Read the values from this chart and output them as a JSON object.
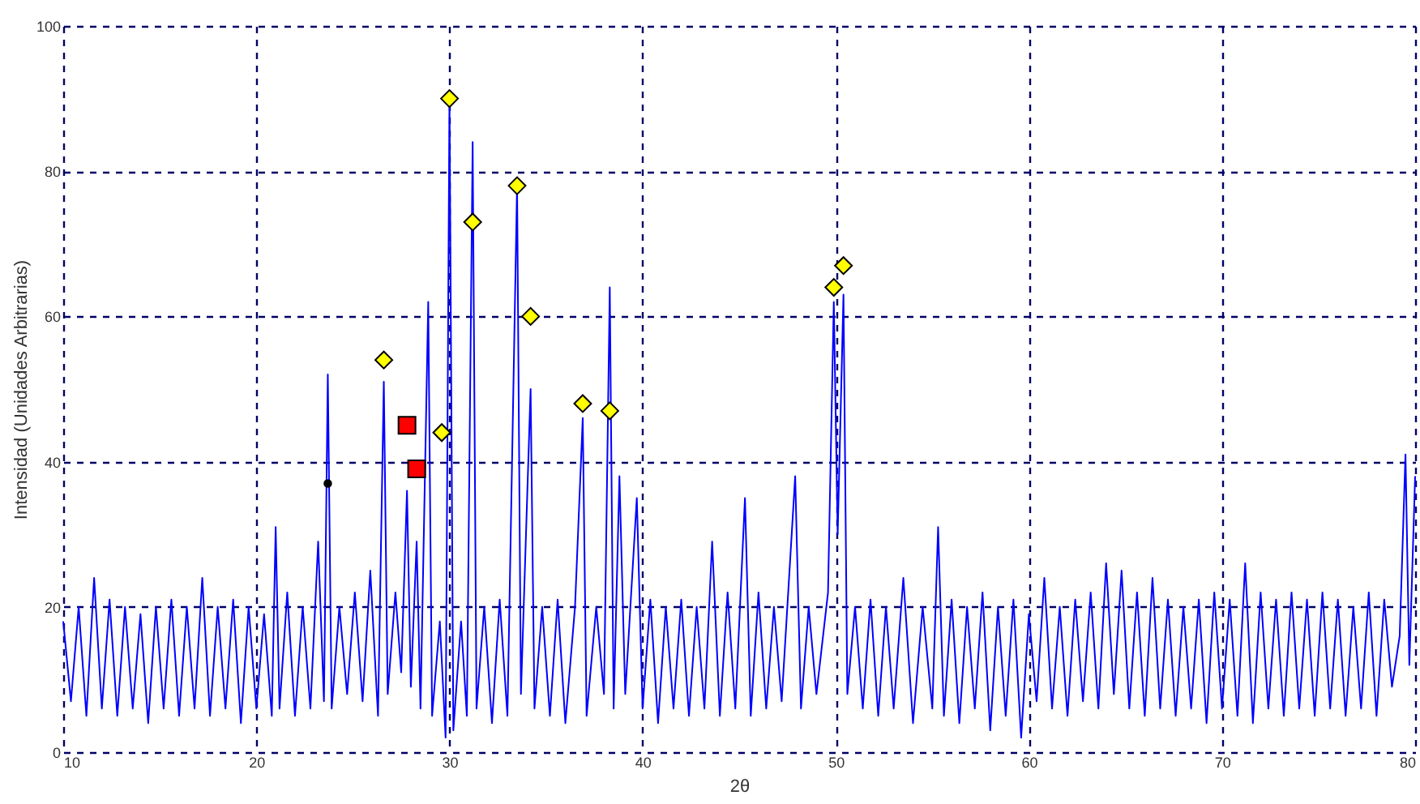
{
  "chart_data": {
    "type": "line",
    "xlabel": "2θ",
    "ylabel": "Intensidad (Unidades Arbitrarias)",
    "xlim": [
      10,
      80
    ],
    "ylim": [
      0,
      100
    ],
    "xticks": [
      10,
      20,
      30,
      40,
      50,
      60,
      70,
      80
    ],
    "yticks": [
      0,
      20,
      40,
      60,
      80,
      100
    ],
    "grid": true,
    "series": [
      {
        "color": "#0000ff",
        "marker": "none",
        "line_style": "solid",
        "x": [
          10,
          10.4,
          10.8,
          11.2,
          11.6,
          12,
          12.4,
          12.8,
          13.2,
          13.6,
          14,
          14.4,
          14.8,
          15.2,
          15.6,
          16,
          16.4,
          16.8,
          17.2,
          17.6,
          18,
          18.4,
          18.8,
          19.2,
          19.6,
          20,
          20.4,
          20.8,
          21,
          21.2,
          21.6,
          22,
          22.4,
          22.8,
          23.2,
          23.5,
          23.7,
          23.9,
          24.3,
          24.7,
          25.1,
          25.5,
          25.9,
          26.3,
          26.6,
          26.8,
          27.2,
          27.5,
          27.8,
          28,
          28.3,
          28.5,
          28.9,
          29.1,
          29.5,
          29.8,
          30,
          30.2,
          30.6,
          30.9,
          31.2,
          31.4,
          31.8,
          32.2,
          32.6,
          33,
          33.5,
          33.7,
          34.2,
          34.4,
          34.8,
          35.2,
          35.6,
          36,
          36.5,
          36.9,
          37.1,
          37.6,
          38,
          38.3,
          38.5,
          38.8,
          39.1,
          39.7,
          40,
          40.4,
          40.8,
          41.2,
          41.6,
          42,
          42.4,
          42.8,
          43.2,
          43.6,
          44,
          44.4,
          44.8,
          45.3,
          45.6,
          46,
          46.4,
          46.8,
          47.2,
          47.9,
          48.2,
          48.6,
          49,
          49.6,
          49.9,
          50.1,
          50.4,
          50.6,
          51,
          51.4,
          51.8,
          52.2,
          52.6,
          53,
          53.5,
          54,
          54.5,
          55,
          55.3,
          55.6,
          56,
          56.4,
          56.8,
          57.2,
          57.6,
          58,
          58.4,
          58.8,
          59.2,
          59.6,
          60,
          60.4,
          60.8,
          61.2,
          61.6,
          62,
          62.4,
          62.8,
          63.2,
          63.6,
          64,
          64.4,
          64.8,
          65.2,
          65.6,
          66,
          66.4,
          66.8,
          67.2,
          67.6,
          68,
          68.4,
          68.8,
          69.2,
          69.6,
          70,
          70.4,
          70.8,
          71.2,
          71.6,
          72,
          72.4,
          72.8,
          73.2,
          73.6,
          74,
          74.4,
          74.8,
          75.2,
          75.6,
          76,
          76.4,
          76.8,
          77.2,
          77.6,
          78,
          78.4,
          78.8,
          79.2,
          79.5,
          79.7,
          80
        ],
        "values": [
          18,
          7,
          20,
          5,
          24,
          6,
          21,
          5,
          20,
          6,
          19,
          4,
          20,
          6,
          21,
          5,
          20,
          6,
          24,
          5,
          20,
          6,
          21,
          4,
          20,
          6,
          19,
          5,
          31,
          6,
          22,
          5,
          20,
          6,
          29,
          7,
          52,
          6,
          20,
          8,
          22,
          7,
          25,
          5,
          51,
          8,
          22,
          11,
          36,
          9,
          29,
          6,
          62,
          5,
          18,
          2,
          90,
          3,
          18,
          5,
          84,
          6,
          20,
          4,
          21,
          5,
          78,
          8,
          50,
          6,
          20,
          5,
          21,
          4,
          20,
          46,
          5,
          20,
          8,
          64,
          6,
          38,
          8,
          35,
          6,
          21,
          4,
          20,
          6,
          21,
          5,
          20,
          6,
          29,
          5,
          22,
          6,
          35,
          5,
          22,
          6,
          20,
          7,
          38,
          6,
          20,
          8,
          22,
          62,
          30,
          63,
          8,
          20,
          6,
          21,
          5,
          20,
          6,
          24,
          4,
          20,
          6,
          31,
          5,
          21,
          4,
          20,
          6,
          22,
          3,
          20,
          5,
          21,
          2,
          19,
          7,
          24,
          6,
          20,
          5,
          21,
          7,
          22,
          6,
          26,
          8,
          25,
          6,
          22,
          5,
          24,
          6,
          21,
          5,
          20,
          6,
          21,
          4,
          22,
          6,
          21,
          5,
          26,
          4,
          22,
          6,
          21,
          5,
          22,
          6,
          21,
          5,
          22,
          6,
          21,
          5,
          20,
          6,
          22,
          5,
          21,
          9,
          16,
          41,
          12,
          38
        ]
      },
      {
        "type": "scatter",
        "color": "#ffff00",
        "marker": "diamond",
        "x": [
          26.6,
          29.6,
          30.0,
          31.2,
          33.5,
          34.2,
          36.9,
          38.3,
          49.9,
          50.4
        ],
        "values": [
          54,
          44,
          90,
          73,
          78,
          60,
          48,
          47,
          64,
          67
        ]
      },
      {
        "type": "scatter",
        "color": "#ff0000",
        "marker": "square",
        "x": [
          27.8,
          28.3
        ],
        "values": [
          45,
          39
        ]
      },
      {
        "type": "scatter",
        "color": "#000000",
        "marker": "circle",
        "x": [
          23.7
        ],
        "values": [
          37
        ]
      }
    ]
  }
}
